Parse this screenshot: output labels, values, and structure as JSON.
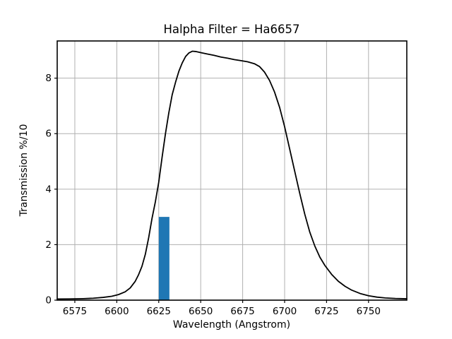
{
  "figure": {
    "background": "#ffffff"
  },
  "chart_data": {
    "type": "line",
    "title": "Halpha Filter = Ha6657",
    "xlabel": "Wavelength (Angstrom)",
    "ylabel": "Transmission %/10",
    "xlim": [
      6564.5,
      6772.8
    ],
    "ylim": [
      0,
      9.34
    ],
    "xticks": [
      6575,
      6600,
      6625,
      6650,
      6675,
      6700,
      6725,
      6750
    ],
    "yticks": [
      0,
      2,
      4,
      6,
      8
    ],
    "grid": true,
    "grid_color": "#b0b0b0",
    "spine_color": "#000000",
    "series": [
      {
        "name": "filter-transmission-curve",
        "type": "line",
        "color": "#000000",
        "linewidth": 1.8,
        "x": [
          6564.5,
          6572,
          6580,
          6586,
          6592,
          6597,
          6601,
          6605,
          6608,
          6611,
          6613,
          6615,
          6617,
          6619,
          6621,
          6623,
          6625,
          6627,
          6629,
          6631,
          6633,
          6635,
          6637,
          6639,
          6641,
          6643,
          6645,
          6647,
          6650,
          6654,
          6658,
          6662,
          6666,
          6670,
          6674,
          6678,
          6682,
          6685,
          6688,
          6691,
          6694,
          6697,
          6700,
          6703,
          6706,
          6709,
          6712,
          6715,
          6718,
          6721,
          6724,
          6728,
          6732,
          6736,
          6740,
          6745,
          6750,
          6755,
          6760,
          6766,
          6772.8
        ],
        "y": [
          0.04,
          0.045,
          0.055,
          0.07,
          0.1,
          0.14,
          0.2,
          0.3,
          0.44,
          0.68,
          0.92,
          1.22,
          1.65,
          2.25,
          2.95,
          3.55,
          4.25,
          5.15,
          6.0,
          6.75,
          7.4,
          7.85,
          8.25,
          8.55,
          8.78,
          8.91,
          8.97,
          8.96,
          8.92,
          8.87,
          8.82,
          8.76,
          8.72,
          8.67,
          8.63,
          8.59,
          8.52,
          8.42,
          8.22,
          7.92,
          7.5,
          6.95,
          6.25,
          5.45,
          4.65,
          3.85,
          3.1,
          2.45,
          1.95,
          1.55,
          1.25,
          0.93,
          0.68,
          0.5,
          0.36,
          0.24,
          0.16,
          0.11,
          0.08,
          0.06,
          0.05
        ]
      },
      {
        "name": "marker-bar",
        "type": "bar",
        "color": "#1f77b4",
        "x": [
          6628.2
        ],
        "bar_width": 6.3,
        "values": [
          3.0
        ]
      }
    ]
  }
}
